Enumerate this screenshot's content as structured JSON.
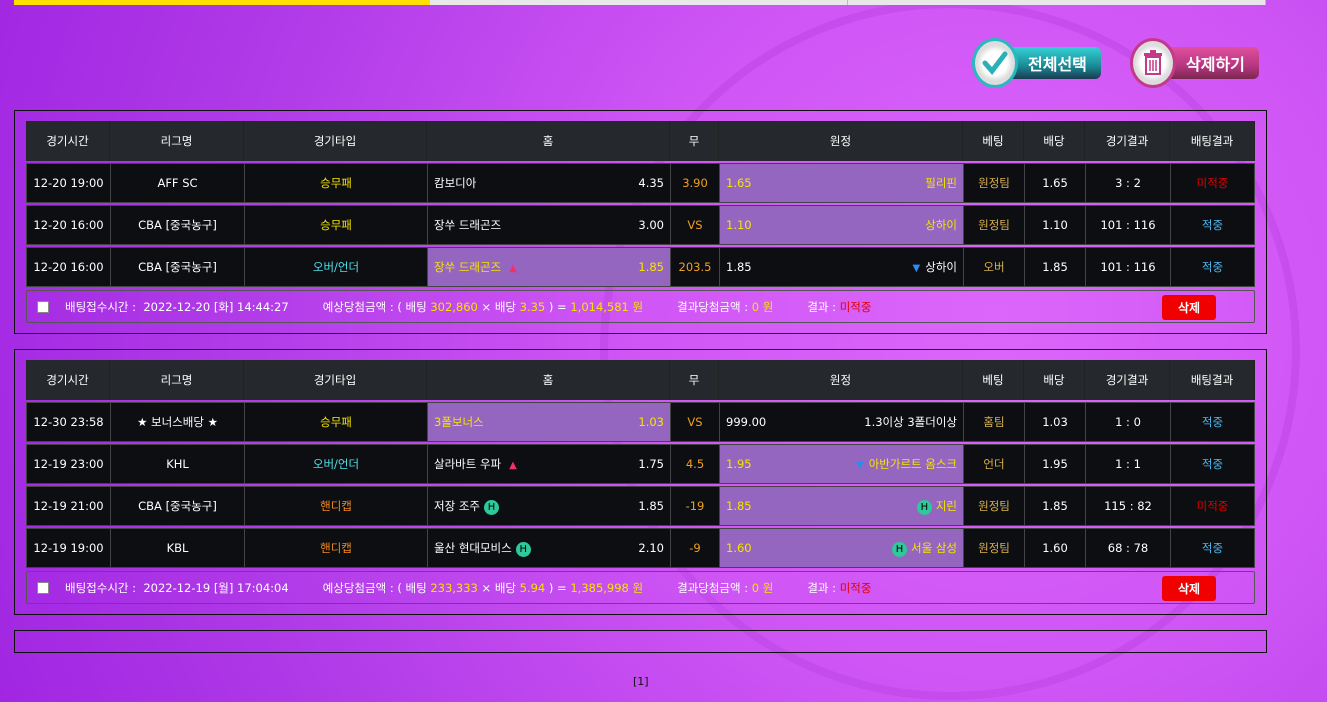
{
  "header": {
    "select_all": "전체선택",
    "delete_selected": "삭제하기"
  },
  "columns": [
    "경기시간",
    "리그명",
    "경기타입",
    "홈",
    "무",
    "원정",
    "베팅",
    "배당",
    "경기결과",
    "배팅결과"
  ],
  "colors": {
    "yellow": "#f5e400",
    "highlight": "#9466c0",
    "hit": "#50b8f0",
    "miss": "#e00000"
  },
  "slips": [
    {
      "rows": [
        {
          "time": "12-20 19:00",
          "league": "AFF SC",
          "type": "승무패",
          "type_class": "yel",
          "home": "캄보디아",
          "home_odds": "4.35",
          "home_mark": "",
          "draw": "3.90",
          "away_odds": "1.65",
          "away": "필리핀",
          "away_mark": "",
          "pick": "away",
          "bet": "원정팀",
          "odds": "1.65",
          "score": "3 : 2",
          "result": "미적중",
          "result_class": "miss"
        },
        {
          "time": "12-20 16:00",
          "league": "CBA [중국농구]",
          "type": "승무패",
          "type_class": "yel",
          "home": "장쑤 드래곤즈",
          "home_odds": "3.00",
          "home_mark": "",
          "draw": "VS",
          "away_odds": "1.10",
          "away": "상하이",
          "away_mark": "",
          "pick": "away",
          "bet": "원정팀",
          "odds": "1.10",
          "score": "101 : 116",
          "result": "적중",
          "result_class": "hit"
        },
        {
          "time": "12-20 16:00",
          "league": "CBA [중국농구]",
          "type": "오버/언더",
          "type_class": "cyan",
          "home": "장쑤 드래곤즈",
          "home_odds": "1.85",
          "home_mark": "up",
          "draw": "203.5",
          "away_odds": "1.85",
          "away": "상하이",
          "away_mark": "down",
          "pick": "home",
          "bet": "오버",
          "odds": "1.85",
          "score": "101 : 116",
          "result": "적중",
          "result_class": "hit"
        }
      ],
      "footer": {
        "time_label": "배팅접수시간 :",
        "time": "2022-12-20 [화] 14:44:27",
        "expected_label": "예상당첨금액 : ( 배팅",
        "stake": "302,860",
        "x_label": "× 배당",
        "total_odds": "3.35",
        "eq": ") =",
        "payout": "1,014,581 원",
        "win_label": "결과당첨금액 :",
        "win": "0 원",
        "result_label": "결과 :",
        "result": "미적중",
        "delete": "삭제"
      }
    },
    {
      "rows": [
        {
          "time": "12-30 23:58",
          "league": "★ 보너스배당 ★",
          "type": "승무패",
          "type_class": "yel",
          "home": "3폴보너스",
          "home_odds": "1.03",
          "home_mark": "",
          "draw": "VS",
          "away_odds": "999.00",
          "away": "1.3이상 3폴더이상",
          "away_mark": "",
          "pick": "home",
          "bet": "홈팀",
          "odds": "1.03",
          "score": "1 : 0",
          "result": "적중",
          "result_class": "hit"
        },
        {
          "time": "12-19 23:00",
          "league": "KHL",
          "type": "오버/언더",
          "type_class": "cyan",
          "home": "살라바트 우파",
          "home_odds": "1.75",
          "home_mark": "up",
          "draw": "4.5",
          "away_odds": "1.95",
          "away": "아반가르트 옴스크",
          "away_mark": "down",
          "pick": "away",
          "bet": "언더",
          "odds": "1.95",
          "score": "1 : 1",
          "result": "적중",
          "result_class": "hit"
        },
        {
          "time": "12-19 21:00",
          "league": "CBA [중국농구]",
          "type": "핸디캡",
          "type_class": "hcap",
          "home": "저장 조주",
          "home_odds": "1.85",
          "home_mark": "H",
          "draw": "-19",
          "away_odds": "1.85",
          "away": "지린",
          "away_mark": "H",
          "pick": "away",
          "bet": "원정팀",
          "odds": "1.85",
          "score": "115 : 82",
          "result": "미적중",
          "result_class": "miss"
        },
        {
          "time": "12-19 19:00",
          "league": "KBL",
          "type": "핸디캡",
          "type_class": "hcap",
          "home": "울산 현대모비스",
          "home_odds": "2.10",
          "home_mark": "H",
          "draw": "-9",
          "away_odds": "1.60",
          "away": "서울 삼성",
          "away_mark": "H",
          "pick": "away",
          "bet": "원정팀",
          "odds": "1.60",
          "score": "68 : 78",
          "result": "적중",
          "result_class": "hit"
        }
      ],
      "footer": {
        "time_label": "배팅접수시간 :",
        "time": "2022-12-19 [월] 17:04:04",
        "expected_label": "예상당첨금액 : ( 배팅",
        "stake": "233,333",
        "x_label": "× 배당",
        "total_odds": "5.94",
        "eq": ") =",
        "payout": "1,385,998 원",
        "win_label": "결과당첨금액 :",
        "win": "0 원",
        "result_label": "결과 :",
        "result": "미적중",
        "delete": "삭제"
      }
    }
  ],
  "icons": {
    "up": "triangle-up-icon",
    "down": "triangle-down-icon",
    "H": "handicap-badge-icon"
  },
  "pagination": {
    "current": "[1]"
  }
}
